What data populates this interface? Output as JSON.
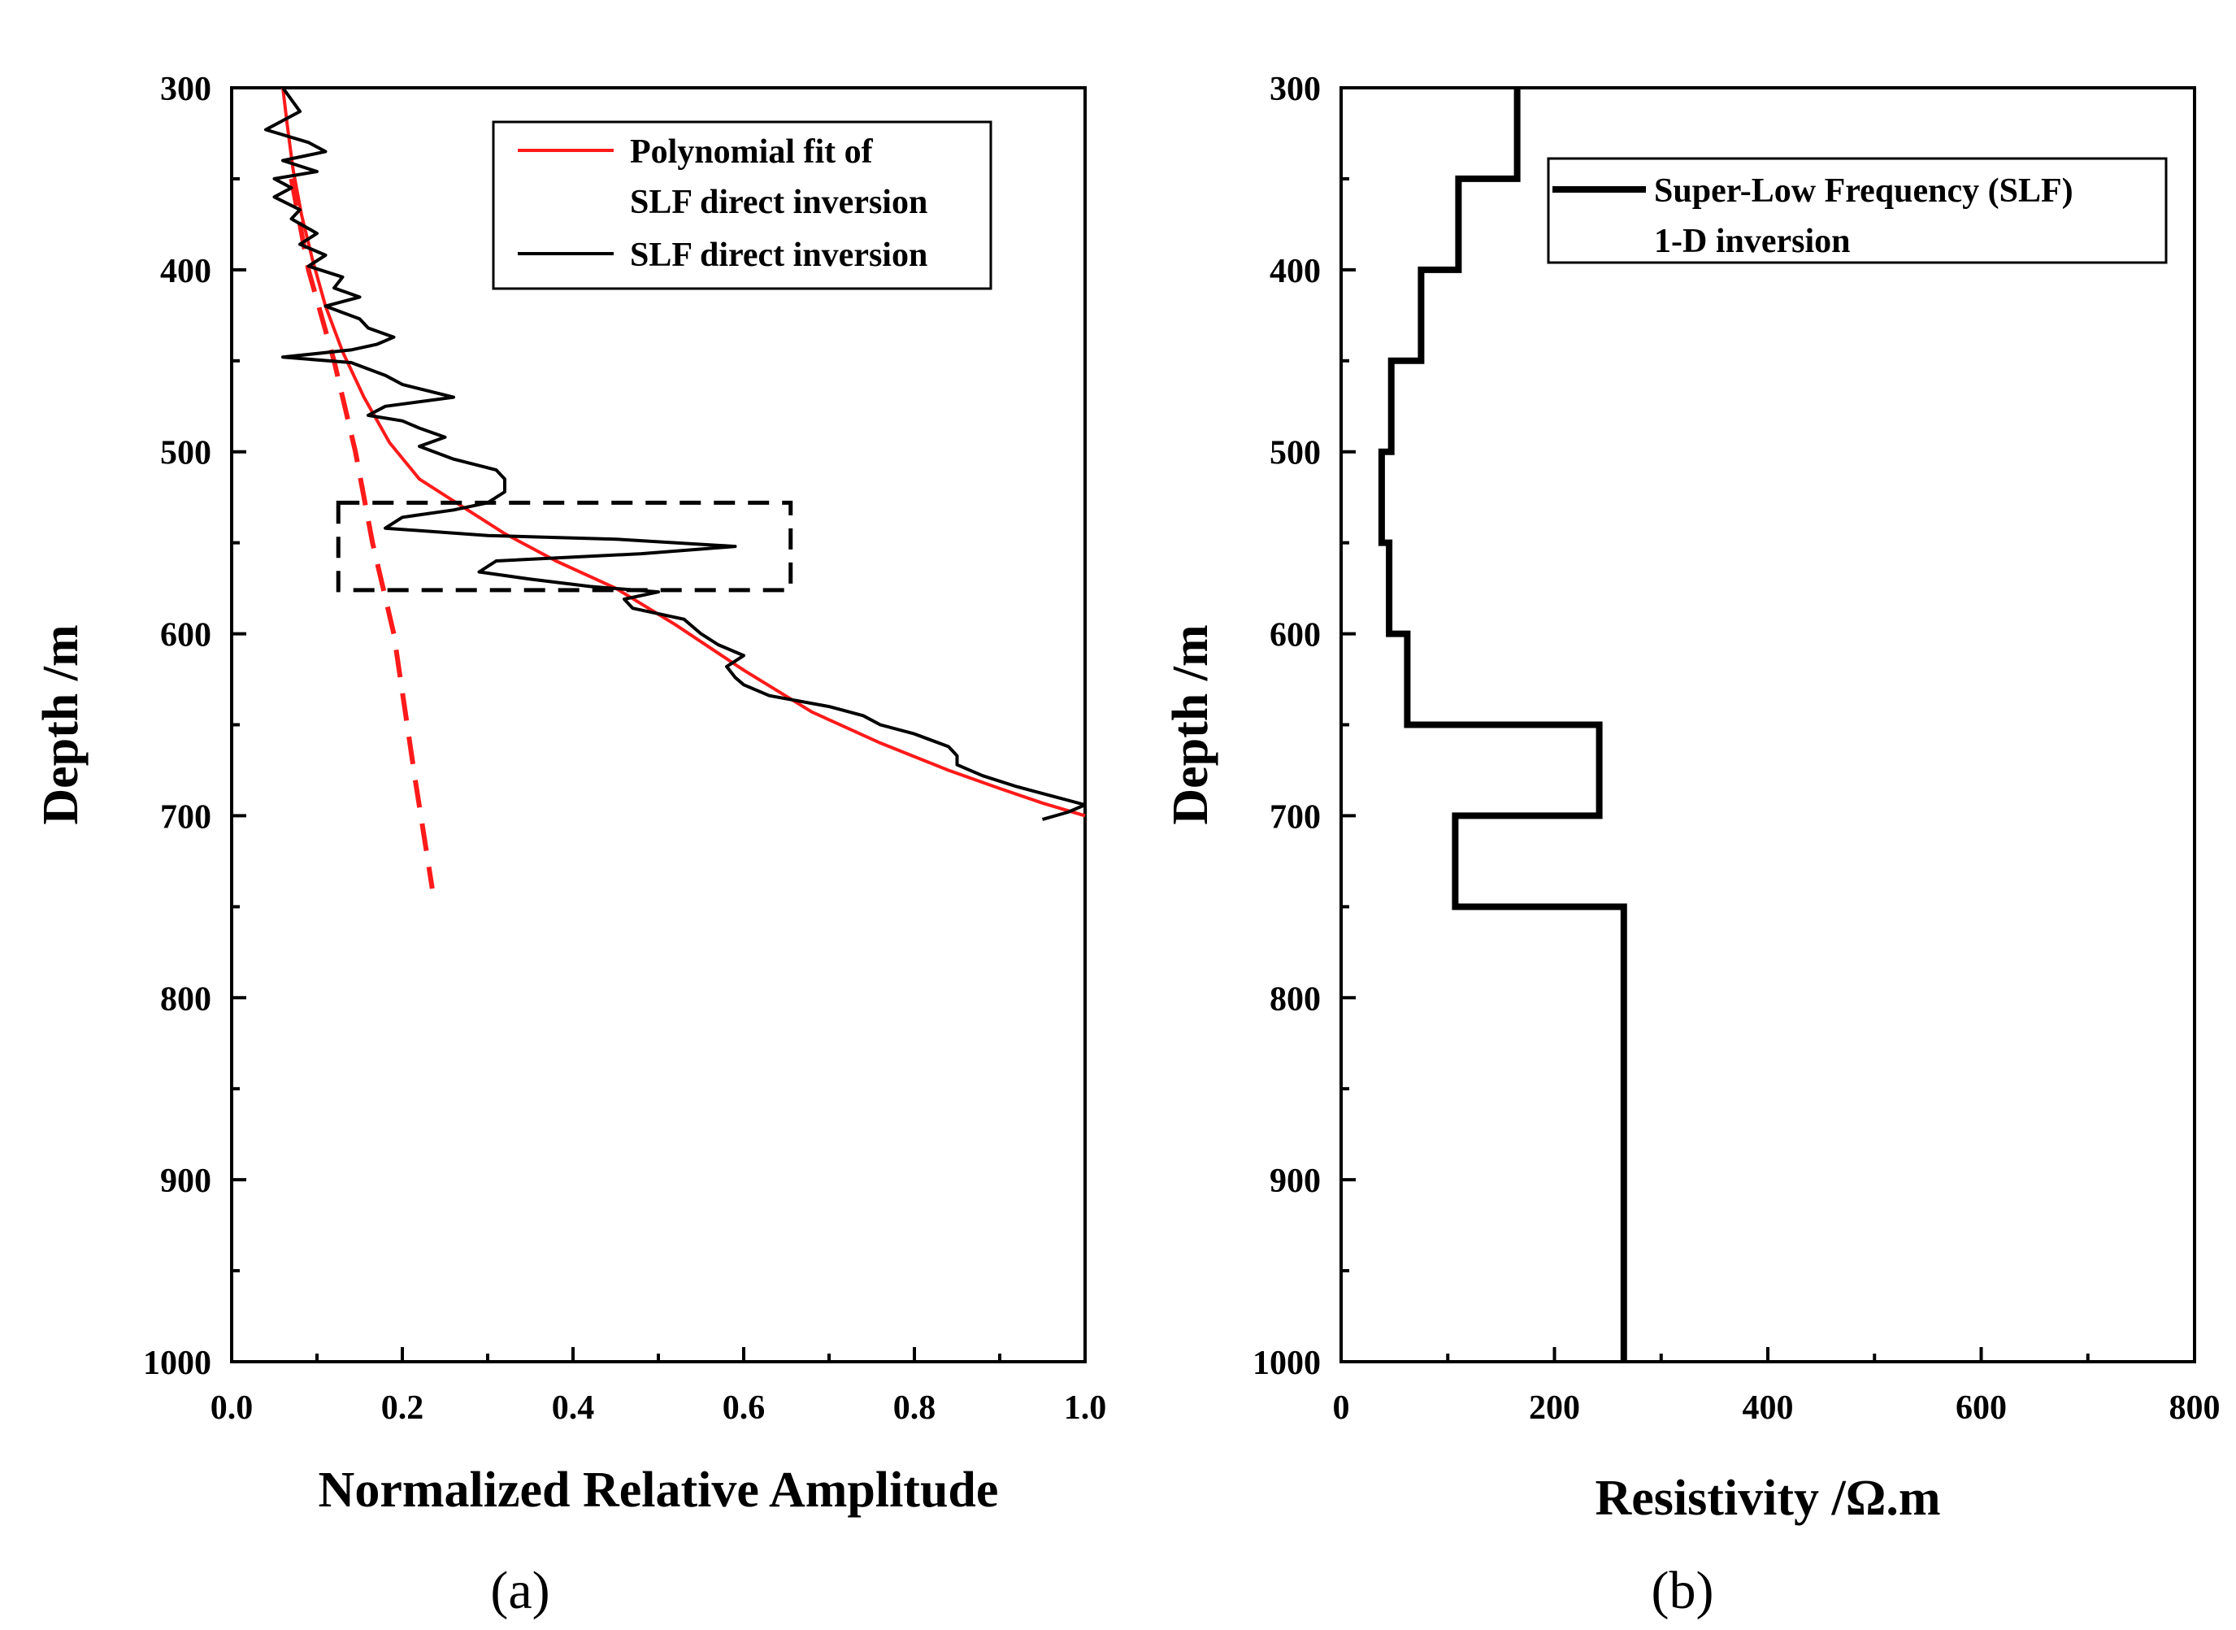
{
  "chart_data": [
    {
      "panel": "(a)",
      "type": "line",
      "xlabel": "Normalized Relative Amplitude",
      "ylabel": "Depth /m",
      "xlim": [
        0.0,
        1.0
      ],
      "ylim": [
        300,
        1000
      ],
      "y_inverted": true,
      "xticks": [
        "0.0",
        "0.2",
        "0.4",
        "0.6",
        "0.8",
        "1.0"
      ],
      "yticks": [
        "300",
        "400",
        "500",
        "600",
        "700",
        "800",
        "900",
        "1000"
      ],
      "legend": [
        "Polynomial fit of",
        "SLF direct inversion",
        "SLF direct inversion"
      ],
      "series": [
        {
          "name": "Polynomial fit of SLF direct inversion",
          "color": "#ff1a1a",
          "style": "solid",
          "points": [
            [
              0.06,
              300
            ],
            [
              0.065,
              320
            ],
            [
              0.072,
              345
            ],
            [
              0.082,
              370
            ],
            [
              0.095,
              395
            ],
            [
              0.11,
              420
            ],
            [
              0.13,
              445
            ],
            [
              0.155,
              470
            ],
            [
              0.185,
              495
            ],
            [
              0.22,
              515
            ],
            [
              0.27,
              530
            ],
            [
              0.32,
              545
            ],
            [
              0.38,
              560
            ],
            [
              0.45,
              575
            ],
            [
              0.52,
              595
            ],
            [
              0.6,
              620
            ],
            [
              0.68,
              643
            ],
            [
              0.76,
              660
            ],
            [
              0.84,
              675
            ],
            [
              0.9,
              685
            ],
            [
              0.95,
              693
            ],
            [
              1.0,
              700
            ]
          ]
        },
        {
          "name": "Polynomial fit extrapolation",
          "color": "#ff1a1a",
          "style": "dashed",
          "points": [
            [
              0.07,
              350
            ],
            [
              0.09,
              400
            ],
            [
              0.12,
              450
            ],
            [
              0.145,
              500
            ],
            [
              0.165,
              550
            ],
            [
              0.19,
              600
            ],
            [
              0.215,
              680
            ],
            [
              0.235,
              740
            ]
          ]
        },
        {
          "name": "SLF direct inversion",
          "color": "#000000",
          "style": "solid",
          "points": [
            [
              0.06,
              300
            ],
            [
              0.08,
              313
            ],
            [
              0.04,
              323
            ],
            [
              0.09,
              330
            ],
            [
              0.11,
              335
            ],
            [
              0.06,
              340
            ],
            [
              0.1,
              346
            ],
            [
              0.05,
              350
            ],
            [
              0.07,
              355
            ],
            [
              0.05,
              360
            ],
            [
              0.08,
              367
            ],
            [
              0.07,
              372
            ],
            [
              0.1,
              380
            ],
            [
              0.08,
              386
            ],
            [
              0.11,
              392
            ],
            [
              0.09,
              398
            ],
            [
              0.13,
              404
            ],
            [
              0.12,
              410
            ],
            [
              0.15,
              415
            ],
            [
              0.11,
              420
            ],
            [
              0.15,
              427
            ],
            [
              0.16,
              432
            ],
            [
              0.19,
              437
            ],
            [
              0.17,
              441
            ],
            [
              0.14,
              444
            ],
            [
              0.06,
              448
            ],
            [
              0.14,
              451
            ],
            [
              0.18,
              458
            ],
            [
              0.2,
              463
            ],
            [
              0.26,
              470
            ],
            [
              0.18,
              475
            ],
            [
              0.16,
              480
            ],
            [
              0.2,
              483
            ],
            [
              0.22,
              487
            ],
            [
              0.25,
              492
            ],
            [
              0.22,
              497
            ],
            [
              0.26,
              504
            ],
            [
              0.31,
              510
            ],
            [
              0.32,
              515
            ],
            [
              0.32,
              522
            ],
            [
              0.3,
              528
            ],
            [
              0.26,
              532
            ],
            [
              0.2,
              536
            ],
            [
              0.18,
              542
            ],
            [
              0.3,
              546
            ],
            [
              0.45,
              548
            ],
            [
              0.59,
              552
            ],
            [
              0.48,
              556
            ],
            [
              0.31,
              560
            ],
            [
              0.29,
              566
            ],
            [
              0.35,
              570
            ],
            [
              0.42,
              574
            ],
            [
              0.5,
              577
            ],
            [
              0.46,
              581
            ],
            [
              0.47,
              586
            ],
            [
              0.53,
              592
            ],
            [
              0.55,
              600
            ],
            [
              0.57,
              606
            ],
            [
              0.6,
              612
            ],
            [
              0.58,
              618
            ],
            [
              0.59,
              624
            ],
            [
              0.6,
              628
            ],
            [
              0.63,
              634
            ],
            [
              0.7,
              640
            ],
            [
              0.74,
              645
            ],
            [
              0.76,
              650
            ],
            [
              0.8,
              655
            ],
            [
              0.84,
              662
            ],
            [
              0.85,
              667
            ],
            [
              0.85,
              672
            ],
            [
              0.88,
              678
            ],
            [
              0.92,
              684
            ],
            [
              0.96,
              689
            ],
            [
              1.0,
              694
            ],
            [
              0.98,
              698
            ],
            [
              0.95,
              702
            ]
          ]
        },
        {
          "name": "Highlight box",
          "color": "#000000",
          "style": "dashed-rect",
          "x_range": [
            0.125,
            0.655
          ],
          "y_range": [
            528,
            576
          ]
        }
      ]
    },
    {
      "panel": "(b)",
      "type": "line",
      "xlabel": "Resistivity /Ω.m",
      "ylabel": "Depth /m",
      "xlim": [
        0,
        800
      ],
      "ylim": [
        300,
        1000
      ],
      "y_inverted": true,
      "xticks": [
        "0",
        "200",
        "400",
        "600",
        "800"
      ],
      "yticks": [
        "300",
        "400",
        "500",
        "600",
        "700",
        "800",
        "900",
        "1000"
      ],
      "legend": [
        "Super-Low Frequency (SLF)",
        "1-D inversion"
      ],
      "series": [
        {
          "name": "Super-Low Frequency (SLF) 1-D inversion",
          "color": "#000000",
          "style": "step",
          "layers": [
            {
              "top": 300,
              "bottom": 350,
              "rho": 165
            },
            {
              "top": 350,
              "bottom": 400,
              "rho": 110
            },
            {
              "top": 400,
              "bottom": 450,
              "rho": 75
            },
            {
              "top": 450,
              "bottom": 500,
              "rho": 47
            },
            {
              "top": 500,
              "bottom": 550,
              "rho": 38
            },
            {
              "top": 550,
              "bottom": 600,
              "rho": 45
            },
            {
              "top": 600,
              "bottom": 650,
              "rho": 62
            },
            {
              "top": 650,
              "bottom": 700,
              "rho": 242
            },
            {
              "top": 700,
              "bottom": 750,
              "rho": 107
            },
            {
              "top": 750,
              "bottom": 1000,
              "rho": 265
            }
          ]
        }
      ]
    }
  ],
  "labels": {
    "panel_a": "(a)",
    "panel_b": "(b)"
  }
}
